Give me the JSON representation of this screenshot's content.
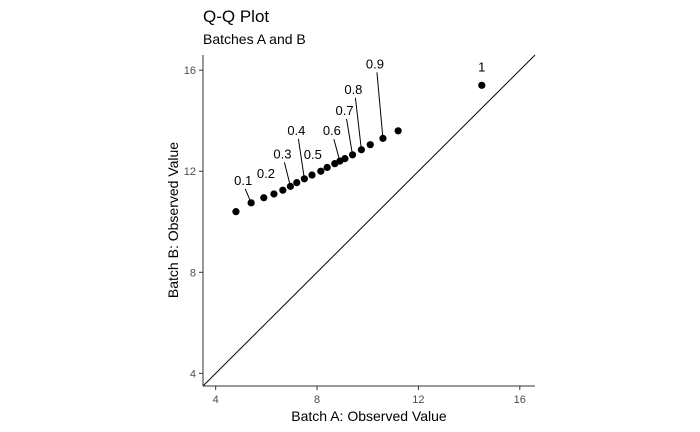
{
  "chart_data": {
    "type": "scatter",
    "title": "Q-Q Plot",
    "subtitle": "Batches A and B",
    "xlabel": "Batch A: Observed Value",
    "ylabel": "Batch B: Observed Value",
    "xlim": [
      3.5,
      16.6
    ],
    "ylim": [
      3.5,
      16.6
    ],
    "x_ticks": [
      4,
      8,
      12,
      16
    ],
    "y_ticks": [
      4,
      8,
      12,
      16
    ],
    "x_tick_labels": [
      "4",
      "8",
      "12",
      "16"
    ],
    "y_tick_labels": [
      "4",
      "8",
      "12",
      "16"
    ],
    "grid": false,
    "reference_line": "y = x",
    "colors": {
      "points": "#000000",
      "axis": "#333333",
      "ticks": "#4d4d4d"
    },
    "points": [
      {
        "x": 4.8,
        "y": 10.4
      },
      {
        "x": 5.4,
        "y": 10.75
      },
      {
        "x": 5.9,
        "y": 10.95
      },
      {
        "x": 6.3,
        "y": 11.1
      },
      {
        "x": 6.65,
        "y": 11.25
      },
      {
        "x": 6.95,
        "y": 11.4
      },
      {
        "x": 7.2,
        "y": 11.55
      },
      {
        "x": 7.5,
        "y": 11.7
      },
      {
        "x": 7.8,
        "y": 11.85
      },
      {
        "x": 8.15,
        "y": 12.0
      },
      {
        "x": 8.4,
        "y": 12.15
      },
      {
        "x": 8.7,
        "y": 12.3
      },
      {
        "x": 8.9,
        "y": 12.4
      },
      {
        "x": 9.1,
        "y": 12.5
      },
      {
        "x": 9.4,
        "y": 12.65
      },
      {
        "x": 9.75,
        "y": 12.85
      },
      {
        "x": 10.1,
        "y": 13.05
      },
      {
        "x": 10.6,
        "y": 13.3
      },
      {
        "x": 11.2,
        "y": 13.6
      },
      {
        "x": 14.5,
        "y": 15.4
      }
    ],
    "annotations": [
      {
        "label": "0.1",
        "x": 5.4,
        "y": 10.75
      },
      {
        "label": "0.2",
        "x": 6.3,
        "y": 11.1
      },
      {
        "label": "0.3",
        "x": 6.95,
        "y": 11.4
      },
      {
        "label": "0.4",
        "x": 7.5,
        "y": 11.7
      },
      {
        "label": "0.5",
        "x": 8.15,
        "y": 12.0
      },
      {
        "label": "0.6",
        "x": 8.9,
        "y": 12.4
      },
      {
        "label": "0.7",
        "x": 9.4,
        "y": 12.65
      },
      {
        "label": "0.8",
        "x": 9.75,
        "y": 12.85
      },
      {
        "label": "0.9",
        "x": 10.6,
        "y": 13.3
      },
      {
        "label": "1",
        "x": 14.5,
        "y": 15.4
      }
    ]
  }
}
